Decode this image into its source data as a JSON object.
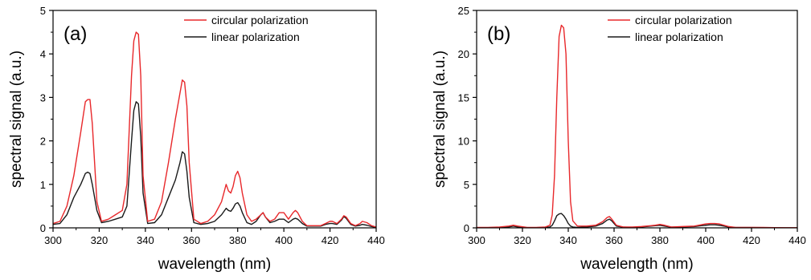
{
  "chart_data": [
    {
      "type": "line",
      "panel_label": "(a)",
      "xlabel": "wavelength (nm)",
      "ylabel": "spectral signal (a.u.)",
      "xlim": [
        300,
        440
      ],
      "ylim": [
        0,
        5
      ],
      "xticks": [
        300,
        320,
        340,
        360,
        380,
        400,
        420,
        440
      ],
      "yticks": [
        0,
        1,
        2,
        3,
        4,
        5
      ],
      "legend_position": "top-right",
      "series": [
        {
          "name": "circular polarization",
          "color": "#e8282b",
          "x": [
            300,
            303,
            306,
            309,
            312,
            314,
            315,
            316,
            317,
            319,
            321,
            324,
            327,
            330,
            332,
            334,
            335,
            336,
            337,
            338,
            339,
            341,
            344,
            347,
            350,
            353,
            355,
            356,
            357,
            358,
            359,
            361,
            364,
            367,
            370,
            373,
            375,
            376,
            377,
            378,
            379,
            380,
            381,
            382,
            384,
            386,
            388,
            390,
            391,
            392,
            394,
            396,
            398,
            400,
            402,
            404,
            405,
            406,
            408,
            410,
            413,
            416,
            418,
            420,
            421,
            423,
            425,
            426,
            427,
            429,
            431,
            433,
            434,
            436,
            438,
            440
          ],
          "y": [
            0.1,
            0.15,
            0.5,
            1.2,
            2.2,
            2.9,
            2.95,
            2.95,
            2.4,
            0.6,
            0.15,
            0.2,
            0.3,
            0.4,
            1.0,
            3.5,
            4.3,
            4.5,
            4.45,
            3.5,
            1.2,
            0.15,
            0.2,
            0.6,
            1.5,
            2.5,
            3.1,
            3.4,
            3.35,
            2.8,
            1.5,
            0.2,
            0.1,
            0.15,
            0.3,
            0.6,
            1.0,
            0.85,
            0.8,
            0.95,
            1.2,
            1.3,
            1.15,
            0.8,
            0.3,
            0.15,
            0.2,
            0.3,
            0.35,
            0.25,
            0.15,
            0.2,
            0.35,
            0.35,
            0.2,
            0.35,
            0.4,
            0.35,
            0.15,
            0.05,
            0.05,
            0.05,
            0.1,
            0.15,
            0.15,
            0.1,
            0.2,
            0.28,
            0.25,
            0.1,
            0.05,
            0.1,
            0.15,
            0.12,
            0.05,
            0.02
          ]
        },
        {
          "name": "linear polarization",
          "color": "#1a1a1a",
          "x": [
            300,
            303,
            306,
            309,
            312,
            314,
            315,
            316,
            317,
            319,
            321,
            324,
            327,
            330,
            332,
            334,
            335,
            336,
            337,
            338,
            339,
            341,
            344,
            347,
            350,
            353,
            355,
            356,
            357,
            358,
            359,
            361,
            364,
            367,
            370,
            373,
            375,
            376,
            377,
            378,
            379,
            380,
            381,
            382,
            384,
            386,
            388,
            390,
            391,
            392,
            394,
            396,
            398,
            400,
            402,
            404,
            405,
            406,
            408,
            410,
            413,
            416,
            418,
            420,
            421,
            423,
            425,
            426,
            427,
            429,
            431,
            433,
            434,
            436,
            438,
            440
          ],
          "y": [
            0.08,
            0.1,
            0.3,
            0.7,
            1.0,
            1.25,
            1.28,
            1.25,
            1.0,
            0.4,
            0.12,
            0.15,
            0.2,
            0.25,
            0.5,
            2.0,
            2.7,
            2.9,
            2.85,
            2.1,
            0.8,
            0.1,
            0.12,
            0.3,
            0.7,
            1.1,
            1.5,
            1.75,
            1.7,
            1.3,
            0.7,
            0.12,
            0.08,
            0.1,
            0.15,
            0.3,
            0.45,
            0.4,
            0.38,
            0.45,
            0.55,
            0.58,
            0.5,
            0.35,
            0.12,
            0.08,
            0.15,
            0.3,
            0.35,
            0.25,
            0.12,
            0.15,
            0.2,
            0.2,
            0.12,
            0.2,
            0.22,
            0.2,
            0.1,
            0.04,
            0.04,
            0.04,
            0.08,
            0.1,
            0.1,
            0.08,
            0.18,
            0.26,
            0.22,
            0.08,
            0.04,
            0.06,
            0.08,
            0.06,
            0.03,
            0.01
          ]
        }
      ]
    },
    {
      "type": "line",
      "panel_label": "(b)",
      "xlabel": "wavelength (nm)",
      "ylabel": "spectral signal (a.u.)",
      "xlim": [
        300,
        440
      ],
      "ylim": [
        0,
        25
      ],
      "xticks": [
        300,
        320,
        340,
        360,
        380,
        400,
        420,
        440
      ],
      "yticks": [
        0,
        5,
        10,
        15,
        20,
        25
      ],
      "legend_position": "top-right",
      "series": [
        {
          "name": "circular polarization",
          "color": "#e8282b",
          "x": [
            300,
            305,
            310,
            314,
            316,
            318,
            322,
            326,
            330,
            332,
            333,
            334,
            335,
            336,
            337,
            338,
            339,
            340,
            341,
            342,
            344,
            348,
            352,
            355,
            357,
            358,
            359,
            361,
            364,
            368,
            372,
            376,
            378,
            380,
            382,
            385,
            390,
            395,
            398,
            400,
            402,
            404,
            406,
            408,
            410,
            413,
            416,
            420,
            425,
            430,
            435,
            440
          ],
          "y": [
            0.05,
            0.05,
            0.1,
            0.2,
            0.3,
            0.2,
            0.05,
            0.05,
            0.1,
            0.3,
            1.5,
            6,
            15,
            22,
            23.3,
            23.0,
            20,
            10,
            3,
            0.8,
            0.2,
            0.2,
            0.3,
            0.7,
            1.2,
            1.3,
            1.0,
            0.3,
            0.1,
            0.1,
            0.15,
            0.25,
            0.3,
            0.4,
            0.3,
            0.1,
            0.15,
            0.2,
            0.35,
            0.45,
            0.5,
            0.5,
            0.45,
            0.3,
            0.15,
            0.05,
            0.05,
            0.05,
            0.05,
            0.03,
            0.02,
            0.02
          ]
        },
        {
          "name": "linear polarization",
          "color": "#1a1a1a",
          "x": [
            300,
            305,
            310,
            314,
            316,
            318,
            322,
            326,
            330,
            332,
            333,
            334,
            335,
            336,
            337,
            338,
            339,
            340,
            341,
            342,
            344,
            348,
            352,
            355,
            357,
            358,
            359,
            361,
            364,
            368,
            372,
            376,
            378,
            380,
            382,
            385,
            390,
            395,
            398,
            400,
            402,
            404,
            406,
            408,
            410,
            413,
            416,
            420,
            425,
            430,
            435,
            440
          ],
          "y": [
            0.03,
            0.03,
            0.05,
            0.1,
            0.2,
            0.1,
            0.03,
            0.03,
            0.05,
            0.1,
            0.3,
            0.8,
            1.4,
            1.6,
            1.65,
            1.4,
            1.0,
            0.5,
            0.2,
            0.1,
            0.05,
            0.1,
            0.2,
            0.5,
            0.9,
            1.0,
            0.8,
            0.2,
            0.08,
            0.06,
            0.1,
            0.2,
            0.25,
            0.3,
            0.2,
            0.08,
            0.1,
            0.15,
            0.25,
            0.3,
            0.35,
            0.35,
            0.3,
            0.2,
            0.1,
            0.04,
            0.04,
            0.04,
            0.03,
            0.02,
            0.01,
            0.01
          ]
        }
      ]
    }
  ]
}
